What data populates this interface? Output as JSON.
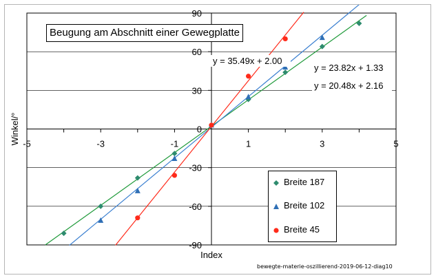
{
  "chart_data": {
    "type": "scatter",
    "title": "Beugung am Abschnitt einer Gewegplatte",
    "xlabel": "Index",
    "ylabel": "Winkel/°",
    "xlim": [
      -5,
      5
    ],
    "ylim": [
      -90,
      90
    ],
    "xticks": [
      -5,
      -3,
      -1,
      1,
      3,
      5
    ],
    "yticks": [
      -90,
      -60,
      -30,
      0,
      30,
      60,
      90
    ],
    "grid": "horizontal",
    "legend_position": "bottom-right",
    "series": [
      {
        "name": "Breite 187",
        "marker": "diamond",
        "color": "#2e8b6e",
        "trendline_color": "#1f9a3a",
        "x": [
          -4,
          -3,
          -2,
          -1,
          0,
          1,
          2,
          3,
          4
        ],
        "y": [
          -81,
          -60,
          -38,
          -19,
          3,
          23,
          44,
          64,
          82
        ],
        "trendline": {
          "slope": 20.48,
          "intercept": 2.16,
          "x_range": [
            -4.5,
            4.2
          ]
        },
        "equation": "y = 20.48x + 2.16"
      },
      {
        "name": "Breite 102",
        "marker": "triangle",
        "color": "#2f6fb5",
        "trendline_color": "#3a7fd0",
        "x": [
          -3,
          -2,
          -1,
          0,
          1,
          2,
          3
        ],
        "y": [
          -71,
          -48,
          -23,
          3,
          25,
          48,
          71
        ],
        "trendline": {
          "slope": 23.82,
          "intercept": 1.33,
          "x_range": [
            -3.85,
            4.2
          ]
        },
        "equation": "y = 23.82x + 1.33"
      },
      {
        "name": "Breite 45",
        "marker": "circle",
        "color": "#ff2a1a",
        "trendline_color": "#ff2a1a",
        "x": [
          -2,
          -1,
          0,
          1,
          2
        ],
        "y": [
          -69,
          -36,
          3,
          41,
          70
        ],
        "trendline": {
          "slope": 35.49,
          "intercept": 2.0,
          "x_range": [
            -2.6,
            2.5
          ]
        },
        "equation": "y = 35.49x + 2.00"
      }
    ]
  },
  "source_note": "bewegte-materie-oszillierend-2019-06-12-diag10"
}
